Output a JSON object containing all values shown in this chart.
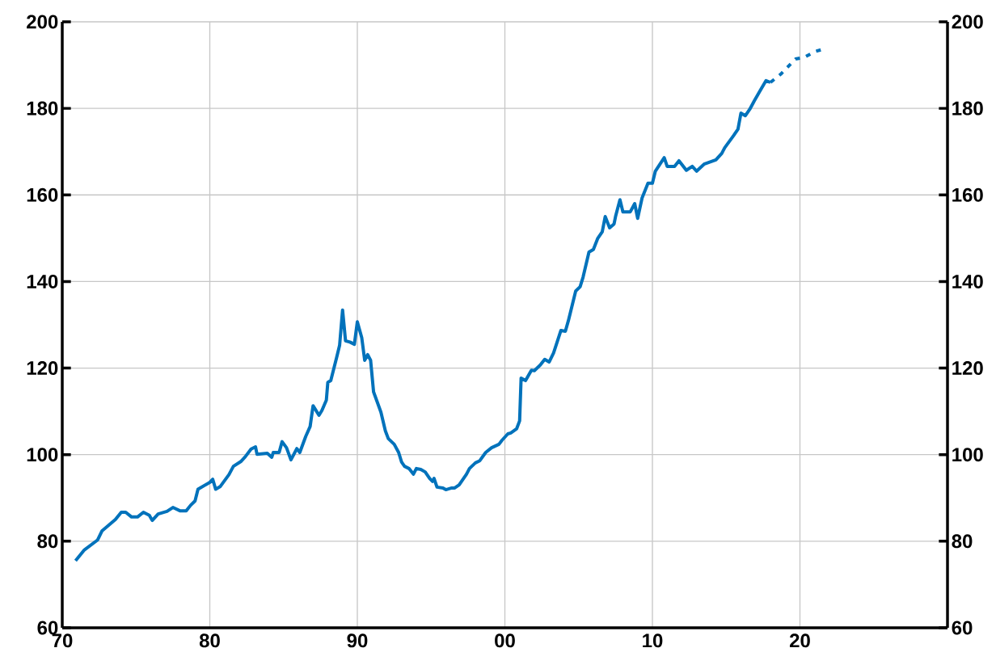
{
  "chart_data": {
    "type": "line",
    "grid": true,
    "xlim": [
      1970,
      2030
    ],
    "ylim": [
      60,
      200
    ],
    "y2lim": [
      60,
      200
    ],
    "xticks": [
      {
        "value": 1970,
        "label": "70"
      },
      {
        "value": 1980,
        "label": "80"
      },
      {
        "value": 1990,
        "label": "90"
      },
      {
        "value": 2000,
        "label": "00"
      },
      {
        "value": 2010,
        "label": "10"
      },
      {
        "value": 2020,
        "label": "20"
      }
    ],
    "yticks": [
      60,
      80,
      100,
      120,
      140,
      160,
      180,
      200
    ],
    "y2ticks": [
      60,
      80,
      100,
      120,
      140,
      160,
      180,
      200
    ],
    "series": [
      {
        "color": "#0072bb",
        "line_style": "solid",
        "x": [
          1970.9,
          1971.5,
          1972.4,
          1972.7,
          1973.6,
          1974.0,
          1974.3,
          1974.7,
          1975.1,
          1975.5,
          1975.9,
          1976.1,
          1976.5,
          1977.1,
          1977.5,
          1978.0,
          1978.4,
          1978.7,
          1979.0,
          1979.2,
          1980.0,
          1980.2,
          1980.4,
          1980.7,
          1981.3,
          1981.6,
          1982.1,
          1982.4,
          1982.8,
          1983.1,
          1983.2,
          1983.9,
          1984.2,
          1984.3,
          1984.7,
          1984.9,
          1985.2,
          1985.5,
          1985.9,
          1986.1,
          1986.5,
          1986.8,
          1987.0,
          1987.4,
          1987.6,
          1987.9,
          1988.0,
          1988.2,
          1988.6,
          1988.8,
          1989.0,
          1989.2,
          1989.5,
          1989.8,
          1990.0,
          1990.3,
          1990.5,
          1990.7,
          1990.9,
          1991.1,
          1991.6,
          1991.9,
          1992.1,
          1992.5,
          1992.8,
          1993.0,
          1993.2,
          1993.5,
          1993.8,
          1994.0,
          1994.3,
          1994.6,
          1994.9,
          1995.1,
          1995.2,
          1995.4,
          1995.8,
          1996.0,
          1996.4,
          1996.6,
          1996.9,
          1997.4,
          1997.6,
          1998.0,
          1998.3,
          1998.7,
          1999.1,
          1999.6,
          1999.8,
          2000.2,
          2000.4,
          2000.8,
          2001.0,
          2001.1,
          2001.4,
          2001.8,
          2002.0,
          2002.4,
          2002.7,
          2003.0,
          2003.3,
          2003.8,
          2004.1,
          2004.3,
          2004.8,
          2005.1,
          2005.3,
          2005.7,
          2006.0,
          2006.3,
          2006.6,
          2006.8,
          2007.1,
          2007.4,
          2007.5,
          2007.8,
          2008.0,
          2008.5,
          2008.8,
          2009.0,
          2009.3,
          2009.7,
          2010.0,
          2010.2,
          2010.8,
          2011.0,
          2011.5,
          2011.8,
          2012.3,
          2012.7,
          2013.0,
          2013.5,
          2014.3,
          2014.7,
          2014.9,
          2015.5,
          2015.8,
          2016.0,
          2016.3,
          2016.6,
          2016.9,
          2017.3,
          2017.7,
          2018.0
        ],
        "values": [
          75.5,
          78,
          80.3,
          82.4,
          85,
          86.7,
          86.7,
          85.6,
          85.6,
          86.7,
          86,
          84.8,
          86.3,
          86.9,
          87.8,
          87,
          87,
          88.3,
          89.3,
          92,
          93.6,
          94.3,
          92,
          92.6,
          95.4,
          97.3,
          98.4,
          99.5,
          101.3,
          101.8,
          100.1,
          100.3,
          99.4,
          100.5,
          100.5,
          103,
          101.6,
          98.8,
          101.4,
          100.5,
          104.2,
          106.5,
          111.3,
          109.1,
          110.2,
          112.6,
          116.7,
          117.1,
          122.5,
          125.3,
          133.4,
          126.3,
          126,
          125.5,
          130.7,
          127,
          121.8,
          123.1,
          121.8,
          114.5,
          109.8,
          105.5,
          103.7,
          102.4,
          100.5,
          98.3,
          97.3,
          96.8,
          95.5,
          96.8,
          96.6,
          96,
          94.5,
          93.8,
          94.5,
          92.5,
          92.3,
          91.9,
          92.3,
          92.3,
          93,
          95.5,
          96.8,
          98.1,
          98.6,
          100.5,
          101.6,
          102.4,
          103.3,
          104.8,
          105,
          106,
          107.8,
          117.7,
          117.1,
          119.5,
          119.4,
          120.7,
          122,
          121.4,
          123.5,
          128.7,
          128.5,
          130.9,
          137.8,
          138.8,
          141,
          146.8,
          147.4,
          150,
          151.5,
          155,
          152.4,
          153.3,
          155,
          158.9,
          156.1,
          156.1,
          158,
          154.6,
          159.3,
          162.7,
          162.7,
          165.5,
          168.6,
          166.6,
          166.6,
          167.9,
          165.7,
          166.6,
          165.5,
          167.1,
          168.1,
          169.6,
          170.9,
          173.7,
          175.2,
          178.9,
          178.3,
          179.8,
          181.7,
          184.1,
          186.4,
          186
        ]
      },
      {
        "color": "#0072bb",
        "line_style": "dotted",
        "x": [
          2018.0,
          2018.7,
          2019.7,
          2020.3,
          2021.0,
          2021.7
        ],
        "values": [
          186,
          187.9,
          191.4,
          191.8,
          193.1,
          193.8
        ]
      }
    ]
  }
}
